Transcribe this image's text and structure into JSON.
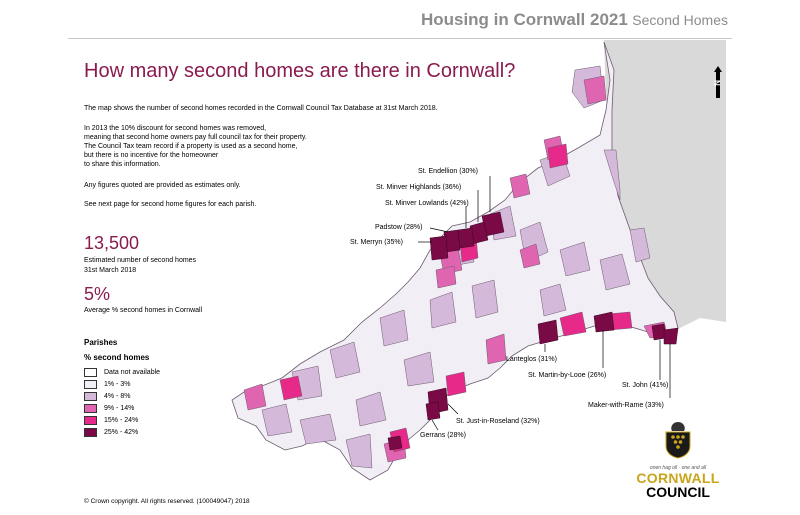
{
  "header": {
    "title": "Housing in Cornwall 2021",
    "subtitle": "Second Homes"
  },
  "title": "How many second homes are there in Cornwall?",
  "paragraphs": [
    "The map shows the number of second homes recorded in the Cornwall Council Tax Database at 31st March 2018.",
    "In 2013 the 10% discount for second homes was removed,",
    "meaning that second home owners pay full council tax for their property.",
    "The Council Tax team record if a property is used as a second home,",
    "but there is no incentive for  the homeowner",
    "to share this information.",
    "Any figures quoted are provided as estimates only.",
    "See next page for second home figures for each parish."
  ],
  "stats": {
    "total_value": "13,500",
    "total_label_1": "Estimated number of second homes",
    "total_label_2": "31st March 2018",
    "pct_value": "5%",
    "pct_label": "Average % second homes in Cornwall"
  },
  "legend": {
    "heading": "Parishes",
    "subheading": "% second homes",
    "items": [
      {
        "label": "Data not available",
        "color": "#ffffff"
      },
      {
        "label": "1% - 3%",
        "color": "#f1eef6"
      },
      {
        "label": "4% - 8%",
        "color": "#d4b9da"
      },
      {
        "label": "9% - 14%",
        "color": "#df65b0"
      },
      {
        "label": "15% - 24%",
        "color": "#e7298a"
      },
      {
        "label": "25% - 42%",
        "color": "#7a0a45"
      }
    ]
  },
  "map_labels": {
    "st_endellion": "St. Endellion (30%)",
    "st_minver_highlands": "St. Minver Highlands (36%)",
    "st_minver_lowlands": "St. Minver Lowlands (42%)",
    "padstow": "Padstow (28%)",
    "st_merryn": "St. Merryn (35%)",
    "lanteglos": "Lanteglos (31%)",
    "st_martin": "St. Martin-by-Looe (26%)",
    "st_john": "St. John (41%)",
    "maker_with_rame": "Maker-with-Rame (33%)",
    "st_just": "St. Just-in-Roseland (32%)",
    "gerrans": "Gerrans (28%)"
  },
  "north": "N",
  "footer": "©  Crown copyright. All rights reserved. (100049047) 2018",
  "logo": {
    "motto": "onen hag oll  ·  one and all",
    "line1": "CORNWALL",
    "line2": "COUNCIL"
  }
}
